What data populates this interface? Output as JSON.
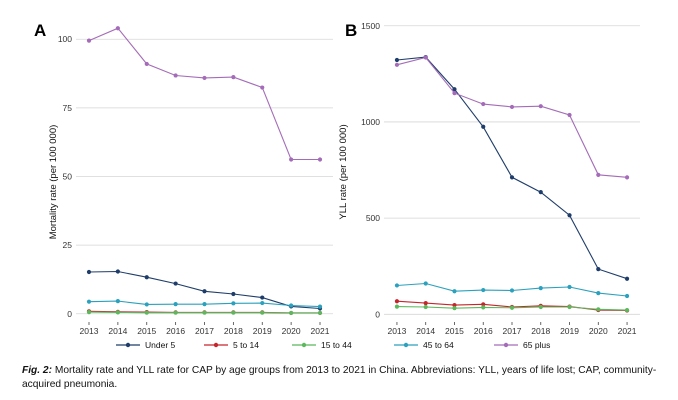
{
  "chart_data": [
    {
      "panel": "A",
      "type": "line",
      "ylabel": "Mortality rate (per 100 000)",
      "xlabel": "",
      "x": [
        "2013",
        "2014",
        "2015",
        "2016",
        "2017",
        "2018",
        "2019",
        "2020",
        "2021"
      ],
      "ylim": [
        -3,
        107
      ],
      "yticks": [
        "0",
        "25",
        "50",
        "75",
        "100"
      ],
      "grid": true,
      "series": [
        {
          "key": "under5",
          "name": "Under 5",
          "color": "#1f3d6b",
          "values": [
            15.2,
            15.4,
            13.3,
            11.0,
            8.2,
            7.2,
            5.9,
            2.7,
            1.9
          ]
        },
        {
          "key": "5to14",
          "name": "5 to 14",
          "color": "#c6252c",
          "values": [
            0.9,
            0.7,
            0.6,
            0.5,
            0.5,
            0.5,
            0.5,
            0.3,
            0.3
          ]
        },
        {
          "key": "15to44",
          "name": "15 to 44",
          "color": "#5cb85c",
          "values": [
            0.6,
            0.5,
            0.4,
            0.4,
            0.4,
            0.4,
            0.4,
            0.3,
            0.3
          ]
        },
        {
          "key": "45to64",
          "name": "45 to 64",
          "color": "#2ba1bd",
          "values": [
            4.4,
            4.6,
            3.4,
            3.5,
            3.5,
            3.8,
            3.9,
            3.0,
            2.6
          ]
        },
        {
          "key": "65plus",
          "name": "65 plus",
          "color": "#a46cb8",
          "values": [
            99.5,
            104.0,
            91.0,
            86.8,
            85.9,
            86.2,
            82.4,
            56.2,
            56.2
          ]
        }
      ]
    },
    {
      "panel": "B",
      "type": "line",
      "ylabel": "YLL rate (per 100 000)",
      "xlabel": "",
      "x": [
        "2013",
        "2014",
        "2015",
        "2016",
        "2017",
        "2018",
        "2019",
        "2020",
        "2021"
      ],
      "ylim": [
        -40,
        1530
      ],
      "yticks": [
        "0",
        "500",
        "1000",
        "1500"
      ],
      "grid": true,
      "series": [
        {
          "key": "under5",
          "name": "Under 5",
          "color": "#1f3d6b",
          "values": [
            1322,
            1337,
            1170,
            975,
            712,
            635,
            515,
            235,
            185
          ]
        },
        {
          "key": "5to14",
          "name": "5 to 14",
          "color": "#c6252c",
          "values": [
            68,
            58,
            48,
            52,
            38,
            44,
            40,
            22,
            20
          ]
        },
        {
          "key": "15to44",
          "name": "15 to 44",
          "color": "#5cb85c",
          "values": [
            40,
            38,
            32,
            36,
            34,
            38,
            38,
            26,
            22
          ]
        },
        {
          "key": "45to64",
          "name": "45 to 64",
          "color": "#2ba1bd",
          "values": [
            150,
            160,
            120,
            126,
            124,
            136,
            142,
            110,
            95
          ]
        },
        {
          "key": "65plus",
          "name": "65 plus",
          "color": "#a46cb8",
          "values": [
            1297,
            1335,
            1150,
            1093,
            1078,
            1082,
            1036,
            725,
            712
          ]
        }
      ]
    }
  ],
  "legend": [
    {
      "key": "under5",
      "label": "Under 5",
      "color": "#1f3d6b"
    },
    {
      "key": "5to14",
      "label": "5 to 14",
      "color": "#c6252c"
    },
    {
      "key": "15to44",
      "label": "15 to 44",
      "color": "#5cb85c"
    },
    {
      "key": "45to64",
      "label": "45 to 64",
      "color": "#2ba1bd"
    },
    {
      "key": "65plus",
      "label": "65 plus",
      "color": "#a46cb8"
    }
  ],
  "caption": {
    "label": "Fig. 2:",
    "text": "Mortality rate and YLL rate for CAP by age groups from 2013 to 2021 in China. Abbreviations: YLL, years of life lost; CAP, community-acquired pneumonia."
  }
}
